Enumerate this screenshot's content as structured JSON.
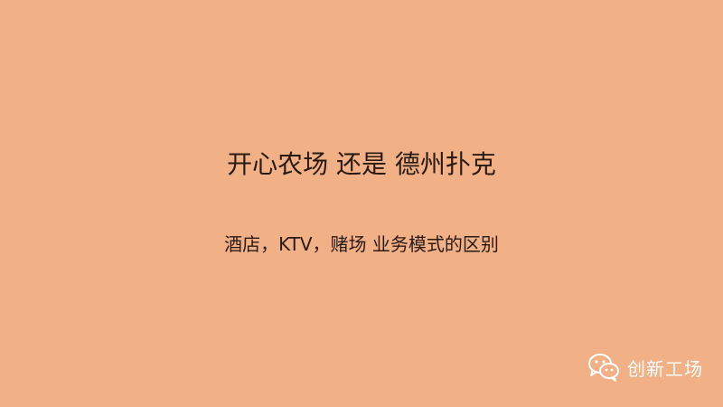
{
  "slide": {
    "title": "开心农场 还是 德州扑克",
    "subtitle": "酒店，KTV，赌场 业务模式的区别"
  },
  "watermark": {
    "icon": "wechat-icon",
    "text": "创新工场"
  },
  "colors": {
    "background": "#f2b086",
    "text": "#2a1a14",
    "watermark": "#ffffff"
  }
}
